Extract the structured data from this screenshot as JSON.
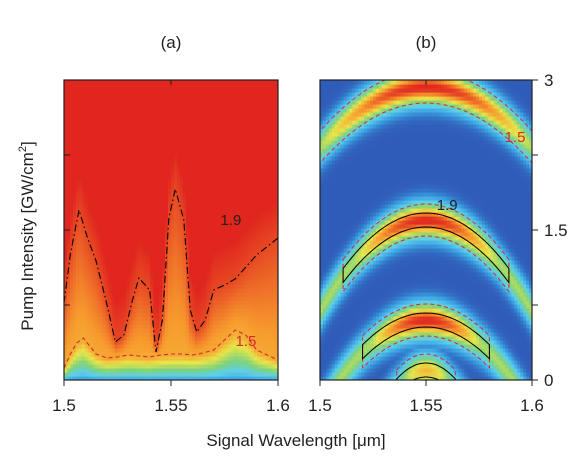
{
  "figure": {
    "xlabel": "Signal Wavelength [μm]",
    "ylabel": "Pump Intensity [GW/cm",
    "ylabel_sup": "2",
    "ylabel_close": "]"
  },
  "chart_data": [
    {
      "type": "heatmap",
      "panel": "(a)",
      "xlim": [
        1.5,
        1.6
      ],
      "ylim": [
        0,
        3
      ],
      "x_ticks": [
        "1.5",
        "1.55",
        "1.6"
      ],
      "colormap": [
        "#2b3fa8",
        "#3a9fe0",
        "#5ccff0",
        "#7ed27b",
        "#e8e64a",
        "#f79a2e",
        "#e0261f"
      ],
      "contours": [
        {
          "level": "1.9",
          "style": "dash-dot",
          "color": "#000000",
          "points": [
            [
              1.5,
              0.77
            ],
            [
              1.503,
              1.26
            ],
            [
              1.507,
              1.7
            ],
            [
              1.511,
              1.42
            ],
            [
              1.515,
              1.19
            ],
            [
              1.52,
              0.76
            ],
            [
              1.524,
              0.38
            ],
            [
              1.528,
              0.45
            ],
            [
              1.532,
              0.8
            ],
            [
              1.535,
              1.02
            ],
            [
              1.54,
              0.9
            ],
            [
              1.543,
              0.28
            ],
            [
              1.546,
              0.6
            ],
            [
              1.549,
              1.62
            ],
            [
              1.552,
              1.91
            ],
            [
              1.556,
              1.6
            ],
            [
              1.559,
              0.7
            ],
            [
              1.562,
              0.48
            ],
            [
              1.566,
              0.6
            ],
            [
              1.57,
              0.9
            ],
            [
              1.575,
              0.95
            ],
            [
              1.58,
              1.01
            ],
            [
              1.59,
              1.25
            ],
            [
              1.6,
              1.42
            ]
          ]
        },
        {
          "level": "1.5",
          "style": "dash",
          "color": "#d62a2a",
          "points": [
            [
              1.5,
              0.12
            ],
            [
              1.503,
              0.26
            ],
            [
              1.506,
              0.37
            ],
            [
              1.509,
              0.42
            ],
            [
              1.512,
              0.34
            ],
            [
              1.515,
              0.26
            ],
            [
              1.52,
              0.22
            ],
            [
              1.525,
              0.23
            ],
            [
              1.53,
              0.25
            ],
            [
              1.535,
              0.24
            ],
            [
              1.54,
              0.23
            ],
            [
              1.545,
              0.25
            ],
            [
              1.55,
              0.26
            ],
            [
              1.555,
              0.26
            ],
            [
              1.56,
              0.25
            ],
            [
              1.565,
              0.27
            ],
            [
              1.57,
              0.3
            ],
            [
              1.575,
              0.4
            ],
            [
              1.58,
              0.5
            ],
            [
              1.585,
              0.45
            ],
            [
              1.59,
              0.3
            ],
            [
              1.6,
              0.2
            ]
          ]
        }
      ],
      "contour_labels": [
        {
          "text": "1.9",
          "x": 1.578,
          "y": 1.55,
          "color": "#231f20"
        },
        {
          "text": "1.5",
          "x": 1.585,
          "y": 0.34,
          "color": "#d62a2a"
        }
      ]
    },
    {
      "type": "heatmap",
      "panel": "(b)",
      "xlim": [
        1.5,
        1.6
      ],
      "ylim": [
        0,
        3
      ],
      "x_ticks": [
        "1.5",
        "1.55",
        "1.6"
      ],
      "y_ticks": [
        "0",
        "1.5",
        "3"
      ],
      "y_tick_values": [
        0,
        1.5,
        3
      ],
      "colormap": [
        "#2b3fa8",
        "#3a9fe0",
        "#5ccff0",
        "#7ed27b",
        "#e8e64a",
        "#f79a2e",
        "#e0261f"
      ],
      "arches": [
        {
          "center_x": 1.55,
          "peak_y": 2.93,
          "half_width": 0.05,
          "depth": 0.6,
          "peak": 2.0
        },
        {
          "center_x": 1.55,
          "peak_y": 1.6,
          "half_width": 0.034,
          "depth": 0.42,
          "peak": 2.0
        },
        {
          "center_x": 1.55,
          "peak_y": 0.6,
          "half_width": 0.026,
          "depth": 0.24,
          "peak": 2.0
        },
        {
          "center_x": 1.55,
          "peak_y": 0.1,
          "half_width": 0.012,
          "depth": 0.12,
          "peak": 1.5
        }
      ],
      "contour_labels": [
        {
          "text": "1.9",
          "x": 1.56,
          "y": 1.7,
          "color": "#231f20"
        },
        {
          "text": "1.5",
          "x": 1.592,
          "y": 2.38,
          "color": "#d62a2a"
        }
      ]
    }
  ]
}
